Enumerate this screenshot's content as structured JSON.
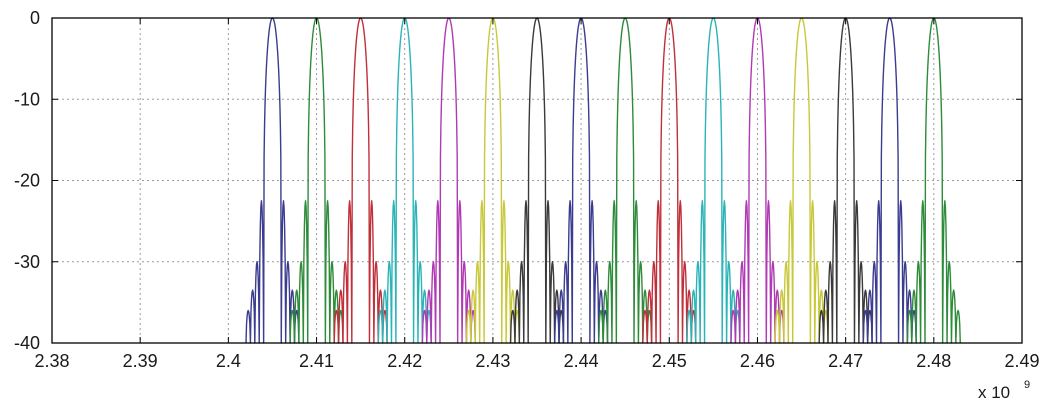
{
  "chart_data": {
    "type": "line",
    "title": "",
    "xlabel": "",
    "ylabel": "",
    "xlim": [
      2.38,
      2.49
    ],
    "ylim": [
      -40,
      0
    ],
    "x_exponent_label": "x 10",
    "x_exponent_power": "9",
    "x_ticks": [
      "2.38",
      "2.39",
      "2.4",
      "2.41",
      "2.42",
      "2.43",
      "2.44",
      "2.45",
      "2.46",
      "2.47",
      "2.48",
      "2.49"
    ],
    "y_ticks": [
      "0",
      "-10",
      "-20",
      "-30",
      "-40"
    ],
    "grid": true,
    "legend": "none",
    "series": [
      {
        "center": 2.405,
        "peak": 0,
        "sidelobe_peaks": [
          -22.5,
          -30.0,
          -33.5,
          -36.0
        ],
        "color": "#3b3b8f"
      },
      {
        "center": 2.41,
        "peak": 0,
        "sidelobe_peaks": [
          -22.5,
          -30.0,
          -33.5,
          -36.0
        ],
        "color": "#2e8b3a"
      },
      {
        "center": 2.415,
        "peak": 0,
        "sidelobe_peaks": [
          -22.5,
          -30.0,
          -33.5,
          -36.0
        ],
        "color": "#c0303a"
      },
      {
        "center": 2.42,
        "peak": 0,
        "sidelobe_peaks": [
          -22.5,
          -30.0,
          -33.5,
          -36.0
        ],
        "color": "#2bb3b8"
      },
      {
        "center": 2.425,
        "peak": 0,
        "sidelobe_peaks": [
          -22.5,
          -30.0,
          -33.5,
          -36.0
        ],
        "color": "#b03ab3"
      },
      {
        "center": 2.43,
        "peak": 0,
        "sidelobe_peaks": [
          -22.5,
          -30.0,
          -33.5,
          -36.0
        ],
        "color": "#c8c83a"
      },
      {
        "center": 2.435,
        "peak": 0,
        "sidelobe_peaks": [
          -22.5,
          -30.0,
          -33.5,
          -36.0
        ],
        "color": "#3a3a3a"
      },
      {
        "center": 2.44,
        "peak": 0,
        "sidelobe_peaks": [
          -22.5,
          -30.0,
          -33.5,
          -36.0
        ],
        "color": "#3b3b8f"
      },
      {
        "center": 2.445,
        "peak": 0,
        "sidelobe_peaks": [
          -22.5,
          -30.0,
          -33.5,
          -36.0
        ],
        "color": "#2e8b3a"
      },
      {
        "center": 2.45,
        "peak": 0,
        "sidelobe_peaks": [
          -22.5,
          -30.0,
          -33.5,
          -36.0
        ],
        "color": "#c0303a"
      },
      {
        "center": 2.455,
        "peak": 0,
        "sidelobe_peaks": [
          -22.5,
          -30.0,
          -33.5,
          -36.0
        ],
        "color": "#2bb3b8"
      },
      {
        "center": 2.46,
        "peak": 0,
        "sidelobe_peaks": [
          -22.5,
          -30.0,
          -33.5,
          -36.0
        ],
        "color": "#b03ab3"
      },
      {
        "center": 2.465,
        "peak": 0,
        "sidelobe_peaks": [
          -22.5,
          -30.0,
          -33.5,
          -36.0
        ],
        "color": "#c8c83a"
      },
      {
        "center": 2.47,
        "peak": 0,
        "sidelobe_peaks": [
          -22.5,
          -30.0,
          -33.5,
          -36.0
        ],
        "color": "#3a3a3a"
      },
      {
        "center": 2.475,
        "peak": 0,
        "sidelobe_peaks": [
          -22.5,
          -30.0,
          -33.5,
          -36.0
        ],
        "color": "#3b3b8f"
      },
      {
        "center": 2.48,
        "peak": 0,
        "sidelobe_peaks": [
          -22.5,
          -30.0,
          -33.5,
          -36.0
        ],
        "color": "#2e8b3a"
      }
    ],
    "main_lobe_half_width": 0.001,
    "sidelobe_spacing": 0.0005
  },
  "colors": {
    "background": "#ffffff",
    "axes": "#000000",
    "grid": "#9a9a9a"
  }
}
